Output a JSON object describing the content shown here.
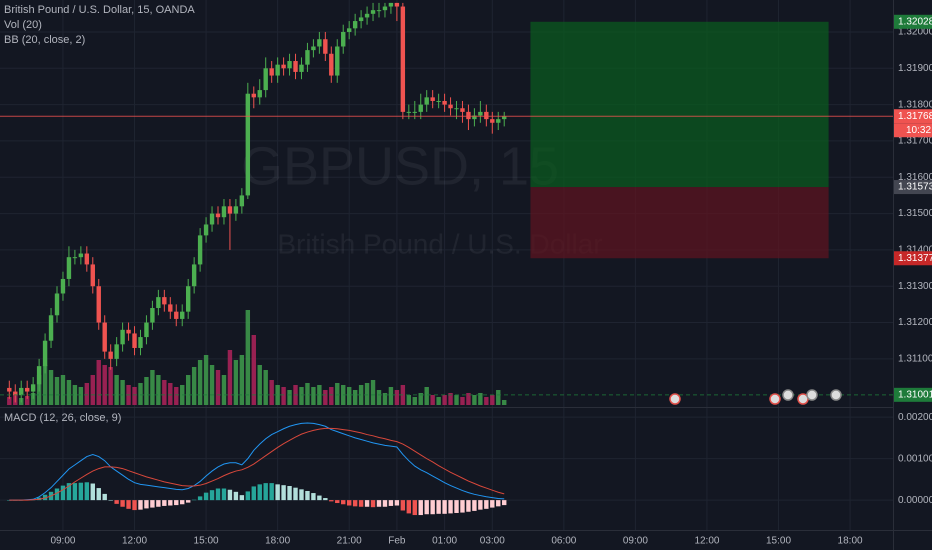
{
  "chart_data": {
    "type": "candlestick",
    "title": "British Pound / U.S. Dollar, 15, OANDA",
    "volume_label": "Vol (20)",
    "bb_label": "BB (20, close, 2)",
    "watermark": "GBPUSD, 15",
    "watermark_subtitle": "British Pound / U.S. Dollar",
    "colors": {
      "up": "#4caf50",
      "down": "#ef5350",
      "volume_up": "#3f9e4c",
      "volume_down": "#b0235a"
    },
    "xlim": [
      6.36,
      43.8
    ],
    "xticks": [
      {
        "value": 9,
        "label": "09:00"
      },
      {
        "value": 12,
        "label": "12:00"
      },
      {
        "value": 15,
        "label": "15:00"
      },
      {
        "value": 18,
        "label": "18:00"
      },
      {
        "value": 21,
        "label": "21:00"
      },
      {
        "value": 23,
        "label": "Feb"
      },
      {
        "value": 25,
        "label": "01:00"
      },
      {
        "value": 27,
        "label": "03:00"
      },
      {
        "value": 30,
        "label": "06:00"
      },
      {
        "value": 33,
        "label": "09:00"
      },
      {
        "value": 36,
        "label": "12:00"
      },
      {
        "value": 39,
        "label": "15:00"
      },
      {
        "value": 42,
        "label": "18:00"
      }
    ],
    "ylim": [
      1.30973,
      1.32088
    ],
    "yticks": [
      {
        "value": 1.32,
        "label": "1.32000"
      },
      {
        "value": 1.319,
        "label": "1.31900"
      },
      {
        "value": 1.318,
        "label": "1.31800"
      },
      {
        "value": 1.317,
        "label": "1.31700"
      },
      {
        "value": 1.316,
        "label": "1.31600"
      },
      {
        "value": 1.315,
        "label": "1.31500"
      },
      {
        "value": 1.314,
        "label": "1.31400"
      },
      {
        "value": 1.313,
        "label": "1.31300"
      },
      {
        "value": 1.312,
        "label": "1.31200"
      },
      {
        "value": 1.311,
        "label": "1.31100"
      }
    ],
    "grid": true,
    "x": [
      6.75,
      7,
      7.25,
      7.5,
      7.75,
      8,
      8.25,
      8.5,
      8.75,
      9,
      9.25,
      9.5,
      9.75,
      10,
      10.25,
      10.5,
      10.75,
      11,
      11.25,
      11.5,
      11.75,
      12,
      12.25,
      12.5,
      12.75,
      13,
      13.25,
      13.5,
      13.75,
      14,
      14.25,
      14.5,
      14.75,
      15,
      15.25,
      15.5,
      15.75,
      16,
      16.25,
      16.5,
      16.75,
      17,
      17.25,
      17.5,
      17.75,
      18,
      18.25,
      18.5,
      18.75,
      19,
      19.25,
      19.5,
      19.75,
      20,
      20.25,
      20.5,
      20.75,
      21,
      21.25,
      21.5,
      21.75,
      22,
      22.25,
      22.5,
      22.75,
      23,
      23.25,
      23.5,
      23.75,
      24,
      24.25,
      24.5,
      24.75,
      25,
      25.25,
      25.5,
      25.75,
      26,
      26.25,
      26.5,
      26.75,
      27,
      27.25,
      27.5
    ],
    "candles": [
      [
        1.3102,
        1.3104,
        1.3099,
        1.3101
      ],
      [
        1.3101,
        1.3103,
        1.3098,
        1.31
      ],
      [
        1.31,
        1.3104,
        1.3098,
        1.3102
      ],
      [
        1.3102,
        1.3104,
        1.3099,
        1.3101
      ],
      [
        1.3101,
        1.3105,
        1.3099,
        1.3103
      ],
      [
        1.3103,
        1.311,
        1.3101,
        1.3108
      ],
      [
        1.3108,
        1.3117,
        1.3106,
        1.3115
      ],
      [
        1.3115,
        1.3124,
        1.3113,
        1.3122
      ],
      [
        1.3122,
        1.313,
        1.312,
        1.3128
      ],
      [
        1.3128,
        1.3134,
        1.3126,
        1.3132
      ],
      [
        1.3132,
        1.3141,
        1.313,
        1.3138
      ],
      [
        1.3138,
        1.314,
        1.3136,
        1.3138
      ],
      [
        1.3138,
        1.3141,
        1.3136,
        1.3139
      ],
      [
        1.3139,
        1.3141,
        1.3134,
        1.3136
      ],
      [
        1.3136,
        1.3138,
        1.3128,
        1.313
      ],
      [
        1.313,
        1.3132,
        1.3118,
        1.312
      ],
      [
        1.312,
        1.3122,
        1.311,
        1.3112
      ],
      [
        1.3112,
        1.3114,
        1.3107,
        1.311
      ],
      [
        1.311,
        1.3116,
        1.3108,
        1.3114
      ],
      [
        1.3114,
        1.312,
        1.3112,
        1.3118
      ],
      [
        1.3118,
        1.312,
        1.3115,
        1.3117
      ],
      [
        1.3117,
        1.3119,
        1.3111,
        1.3113
      ],
      [
        1.3113,
        1.3118,
        1.3111,
        1.3116
      ],
      [
        1.3116,
        1.3122,
        1.3114,
        1.312
      ],
      [
        1.312,
        1.3126,
        1.3118,
        1.3124
      ],
      [
        1.3124,
        1.3129,
        1.3122,
        1.3127
      ],
      [
        1.3127,
        1.3129,
        1.3123,
        1.3125
      ],
      [
        1.3125,
        1.3127,
        1.3121,
        1.3123
      ],
      [
        1.3123,
        1.3125,
        1.3119,
        1.3121
      ],
      [
        1.3121,
        1.3125,
        1.3119,
        1.3123
      ],
      [
        1.3123,
        1.3132,
        1.3121,
        1.313
      ],
      [
        1.313,
        1.3138,
        1.3128,
        1.3136
      ],
      [
        1.3136,
        1.3146,
        1.3134,
        1.3144
      ],
      [
        1.3144,
        1.3149,
        1.3142,
        1.3147
      ],
      [
        1.3147,
        1.3152,
        1.3145,
        1.315
      ],
      [
        1.315,
        1.3152,
        1.3147,
        1.3149
      ],
      [
        1.3149,
        1.3154,
        1.3147,
        1.3152
      ],
      [
        1.3152,
        1.3154,
        1.314,
        1.315
      ],
      [
        1.315,
        1.3154,
        1.3148,
        1.3152
      ],
      [
        1.3152,
        1.3157,
        1.315,
        1.3155
      ],
      [
        1.3155,
        1.3186,
        1.3154,
        1.3183
      ],
      [
        1.3183,
        1.3185,
        1.3179,
        1.3182
      ],
      [
        1.3182,
        1.3187,
        1.318,
        1.3184
      ],
      [
        1.3184,
        1.3193,
        1.3182,
        1.319
      ],
      [
        1.319,
        1.3192,
        1.3186,
        1.3188
      ],
      [
        1.3188,
        1.3193,
        1.3186,
        1.3191
      ],
      [
        1.3191,
        1.3193,
        1.3188,
        1.319
      ],
      [
        1.319,
        1.3194,
        1.3188,
        1.3192
      ],
      [
        1.3192,
        1.3194,
        1.3187,
        1.3189
      ],
      [
        1.3189,
        1.3193,
        1.3187,
        1.3191
      ],
      [
        1.3191,
        1.3197,
        1.3189,
        1.3195
      ],
      [
        1.3195,
        1.3198,
        1.3193,
        1.3196
      ],
      [
        1.3196,
        1.32,
        1.3194,
        1.3198
      ],
      [
        1.3198,
        1.32,
        1.3192,
        1.3194
      ],
      [
        1.3194,
        1.3196,
        1.3186,
        1.3188
      ],
      [
        1.3188,
        1.3198,
        1.3186,
        1.3196
      ],
      [
        1.3196,
        1.3202,
        1.3194,
        1.32
      ],
      [
        1.32,
        1.3203,
        1.3198,
        1.3201
      ],
      [
        1.3201,
        1.3205,
        1.3199,
        1.3203
      ],
      [
        1.3203,
        1.3206,
        1.3201,
        1.3204
      ],
      [
        1.3204,
        1.3207,
        1.3202,
        1.3205
      ],
      [
        1.3205,
        1.3208,
        1.3203,
        1.3206
      ],
      [
        1.3206,
        1.3208,
        1.3204,
        1.3206
      ],
      [
        1.3206,
        1.3208,
        1.3204,
        1.3207
      ],
      [
        1.3207,
        1.3208,
        1.3205,
        1.3208
      ],
      [
        1.3208,
        1.3208,
        1.3203,
        1.3207
      ],
      [
        1.3207,
        1.3208,
        1.3176,
        1.3178
      ],
      [
        1.3178,
        1.318,
        1.3176,
        1.3178
      ],
      [
        1.3178,
        1.3181,
        1.3176,
        1.3178
      ],
      [
        1.3178,
        1.3183,
        1.3176,
        1.318
      ],
      [
        1.318,
        1.3184,
        1.3178,
        1.3182
      ],
      [
        1.3182,
        1.3184,
        1.3179,
        1.3181
      ],
      [
        1.3181,
        1.3183,
        1.3179,
        1.3181
      ],
      [
        1.3181,
        1.3183,
        1.3178,
        1.318
      ],
      [
        1.318,
        1.3182,
        1.3177,
        1.3179
      ],
      [
        1.3179,
        1.3181,
        1.3176,
        1.3179
      ],
      [
        1.3179,
        1.3181,
        1.3175,
        1.3178
      ],
      [
        1.3178,
        1.318,
        1.3173,
        1.3176
      ],
      [
        1.3176,
        1.3179,
        1.3174,
        1.3177
      ],
      [
        1.3177,
        1.3181,
        1.3175,
        1.3178
      ],
      [
        1.3178,
        1.318,
        1.3174,
        1.3176
      ],
      [
        1.3176,
        1.3178,
        1.3172,
        1.3175
      ],
      [
        1.3175,
        1.3178,
        1.3173,
        1.3176
      ],
      [
        1.3176,
        1.3178,
        1.3174,
        1.31768
      ]
    ],
    "volume": [
      8,
      10,
      7,
      9,
      12,
      30,
      40,
      35,
      28,
      30,
      25,
      20,
      18,
      22,
      30,
      45,
      40,
      38,
      30,
      25,
      20,
      18,
      22,
      28,
      35,
      30,
      25,
      22,
      18,
      20,
      30,
      38,
      45,
      50,
      40,
      35,
      30,
      55,
      45,
      50,
      95,
      70,
      40,
      35,
      25,
      20,
      18,
      15,
      20,
      18,
      22,
      18,
      20,
      15,
      18,
      22,
      20,
      18,
      15,
      20,
      22,
      25,
      15,
      12,
      18,
      15,
      20,
      10,
      8,
      12,
      18,
      10,
      8,
      10,
      12,
      10,
      8,
      12,
      10,
      12,
      8,
      10,
      15,
      5
    ],
    "price_labels": [
      {
        "value": 1.32028,
        "label": "1.32028",
        "color": "#1e7b3a"
      },
      {
        "value": 1.31768,
        "label": "1.31768",
        "color": "#ef5350",
        "line": "solid"
      },
      {
        "value": 1.31573,
        "label": "1.31573",
        "color": "#434651"
      },
      {
        "value": 1.31377,
        "label": "1.31377",
        "color": "#c62828"
      },
      {
        "value": 1.31001,
        "label": "1.31001",
        "color": "#1e7b3a",
        "line": "dashed"
      }
    ],
    "countdown": "10:32",
    "position": {
      "target": 1.32028,
      "entry": 1.31573,
      "stop": 1.31377,
      "x": [
        28.6,
        41.1
      ],
      "target_color": "#0b5a1f",
      "stop_color": "#5c1420"
    },
    "macd": {
      "label": "MACD (12, 26, close, 9)",
      "ylim": [
        -0.00072,
        0.00222
      ],
      "yticks": [
        {
          "value": 0.002,
          "label": "0.00200"
        },
        {
          "value": 0.001,
          "label": "0.00100"
        },
        {
          "value": 0,
          "label": "0.00000"
        }
      ],
      "macd_color": "#2196f3",
      "signal_color": "#d9483b",
      "histogram_colors": {
        "up_rising": "#26a69a",
        "up_falling": "#b2dfdb",
        "down_rising": "#ffcdd2",
        "down_falling": "#ef5350"
      },
      "macd": [
        0,
        0,
        0,
        1e-05,
        2e-05,
        8e-05,
        0.00018,
        0.0003,
        0.00045,
        0.0006,
        0.00075,
        0.00085,
        0.00095,
        0.00105,
        0.0011,
        0.00105,
        0.00095,
        0.0008,
        0.0007,
        0.0006,
        0.0005,
        0.00042,
        0.00038,
        0.00036,
        0.00034,
        0.00032,
        0.0003,
        0.00028,
        0.00026,
        0.00025,
        0.00028,
        0.00035,
        0.00045,
        0.00058,
        0.0007,
        0.0008,
        0.00087,
        0.0009,
        0.0009,
        0.00085,
        0.001,
        0.0012,
        0.00135,
        0.00148,
        0.00158,
        0.00165,
        0.00172,
        0.00178,
        0.00182,
        0.00185,
        0.00186,
        0.00185,
        0.00182,
        0.00178,
        0.0017,
        0.00165,
        0.0016,
        0.00155,
        0.0015,
        0.00146,
        0.00142,
        0.00138,
        0.00135,
        0.00132,
        0.0013,
        0.00128,
        0.0011,
        0.00095,
        0.00082,
        0.00073,
        0.00066,
        0.00058,
        0.0005,
        0.00042,
        0.00035,
        0.00029,
        0.00023,
        0.00018,
        0.00014,
        0.00011,
        8e-05,
        6e-05,
        4e-05,
        3e-05
      ],
      "signal": [
        0,
        0,
        0,
        0,
        1e-05,
        2e-05,
        5e-05,
        0.0001,
        0.00017,
        0.00025,
        0.00034,
        0.00044,
        0.00053,
        0.00062,
        0.0007,
        0.00076,
        0.0008,
        0.0008,
        0.00079,
        0.00076,
        0.00071,
        0.00066,
        0.00061,
        0.00056,
        0.00052,
        0.00048,
        0.00044,
        0.00041,
        0.00038,
        0.00035,
        0.00034,
        0.00034,
        0.00036,
        0.0004,
        0.00046,
        0.00052,
        0.00059,
        0.00065,
        0.0007,
        0.00073,
        0.00079,
        0.00087,
        0.00097,
        0.00107,
        0.00117,
        0.00127,
        0.00136,
        0.00144,
        0.00152,
        0.00159,
        0.00164,
        0.00168,
        0.00171,
        0.00173,
        0.00173,
        0.00172,
        0.0017,
        0.00168,
        0.00165,
        0.00162,
        0.00158,
        0.00155,
        0.00151,
        0.00148,
        0.00144,
        0.00141,
        0.00135,
        0.00127,
        0.00118,
        0.00109,
        0.001,
        0.00092,
        0.00083,
        0.00075,
        0.00067,
        0.0006,
        0.00053,
        0.00046,
        0.0004,
        0.00034,
        0.00029,
        0.00024,
        0.00019,
        0.00015
      ],
      "histogram": [
        0,
        0,
        0,
        1e-05,
        1e-05,
        6e-05,
        0.00013,
        0.0002,
        0.00028,
        0.00035,
        0.00041,
        0.00041,
        0.00042,
        0.00043,
        0.0004,
        0.00029,
        0.00015,
        0,
        -9e-05,
        -0.00016,
        -0.00021,
        -0.00024,
        -0.00023,
        -0.0002,
        -0.00018,
        -0.00016,
        -0.00014,
        -0.00013,
        -0.00012,
        -0.0001,
        -6e-05,
        1e-05,
        9e-05,
        0.00018,
        0.00024,
        0.00028,
        0.00028,
        0.00025,
        0.0002,
        0.00012,
        0.00021,
        0.00033,
        0.00038,
        0.00041,
        0.00041,
        0.00038,
        0.00036,
        0.00034,
        0.0003,
        0.00026,
        0.00022,
        0.00017,
        0.00011,
        5e-05,
        -3e-05,
        -7e-05,
        -0.0001,
        -0.00013,
        -0.00015,
        -0.00016,
        -0.00016,
        -0.00017,
        -0.00016,
        -0.00016,
        -0.00014,
        -0.00013,
        -0.00025,
        -0.00032,
        -0.00036,
        -0.00036,
        -0.00034,
        -0.00034,
        -0.00033,
        -0.00033,
        -0.00032,
        -0.00031,
        -0.0003,
        -0.00028,
        -0.00026,
        -0.00023,
        -0.00021,
        -0.00018,
        -0.00015,
        -0.00012
      ]
    }
  }
}
